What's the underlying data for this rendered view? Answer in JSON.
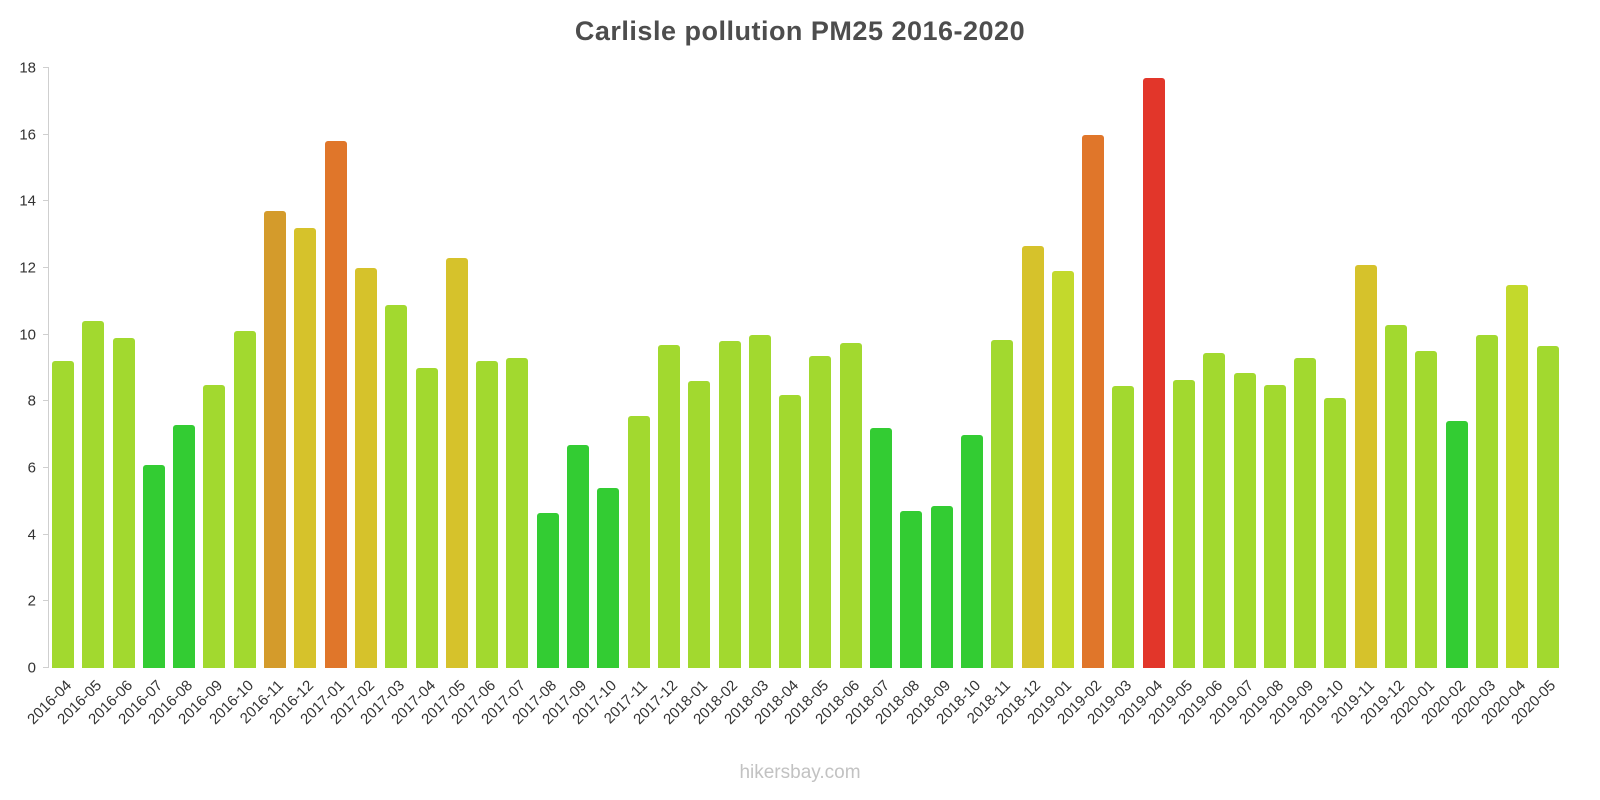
{
  "title": "Carlisle pollution PM25 2016-2020",
  "footer": "hikersbay.com",
  "chart_data": {
    "type": "bar",
    "title": "Carlisle pollution PM25 2016-2020",
    "xlabel": "",
    "ylabel": "",
    "ylim": [
      0,
      18
    ],
    "y_ticks": [
      0,
      2,
      4,
      6,
      8,
      10,
      12,
      14,
      16,
      18
    ],
    "grid": false,
    "legend": false,
    "watermark": "hikersbay.com",
    "categories": [
      "2016-04",
      "2016-05",
      "2016-06",
      "2016-07",
      "2016-08",
      "2016-09",
      "2016-10",
      "2016-11",
      "2016-12",
      "2017-01",
      "2017-02",
      "2017-03",
      "2017-04",
      "2017-05",
      "2017-06",
      "2017-07",
      "2017-08",
      "2017-09",
      "2017-10",
      "2017-11",
      "2017-12",
      "2018-01",
      "2018-02",
      "2018-03",
      "2018-04",
      "2018-05",
      "2018-06",
      "2018-07",
      "2018-08",
      "2018-09",
      "2018-10",
      "2018-11",
      "2018-12",
      "2019-01",
      "2019-02",
      "2019-03",
      "2019-04",
      "2019-05",
      "2019-06",
      "2019-07",
      "2019-08",
      "2019-09",
      "2019-10",
      "2019-11",
      "2019-12",
      "2020-01",
      "2020-02",
      "2020-03",
      "2020-04",
      "2020-05"
    ],
    "values": [
      9.2,
      10.4,
      9.9,
      6.1,
      7.3,
      8.5,
      10.1,
      13.7,
      13.2,
      15.8,
      12.0,
      10.9,
      9.0,
      12.3,
      9.2,
      9.3,
      4.65,
      6.7,
      5.4,
      7.55,
      9.7,
      8.6,
      9.8,
      10.0,
      8.2,
      9.35,
      9.75,
      7.2,
      4.7,
      4.85,
      7.0,
      9.85,
      12.65,
      11.9,
      16.0,
      8.45,
      17.7,
      8.65,
      9.45,
      8.85,
      8.5,
      9.3,
      8.1,
      12.1,
      10.3,
      9.5,
      7.4,
      10.0,
      11.5,
      9.65
    ],
    "bar_colors": [
      "#a2d92f",
      "#a2d92f",
      "#a2d92f",
      "#33cc33",
      "#33cc33",
      "#a2d92f",
      "#a2d92f",
      "#d49b2b",
      "#d6c22b",
      "#e0762a",
      "#d6c22b",
      "#a2d92f",
      "#a2d92f",
      "#d6c22b",
      "#a2d92f",
      "#a2d92f",
      "#33cc33",
      "#33cc33",
      "#33cc33",
      "#a2d92f",
      "#a2d92f",
      "#a2d92f",
      "#a2d92f",
      "#a2d92f",
      "#a2d92f",
      "#a2d92f",
      "#a2d92f",
      "#33cc33",
      "#33cc33",
      "#33cc33",
      "#33cc33",
      "#a2d92f",
      "#d6c22b",
      "#c3d92c",
      "#e0762a",
      "#a2d92f",
      "#e2362a",
      "#a2d92f",
      "#a2d92f",
      "#a2d92f",
      "#a2d92f",
      "#a2d92f",
      "#a2d92f",
      "#d6c22b",
      "#a2d92f",
      "#a2d92f",
      "#33cc33",
      "#a2d92f",
      "#c3d92c",
      "#a2d92f"
    ],
    "axis_color": "#cfcfcf",
    "label_color": "#333333",
    "title_color": "#4d4d4d"
  }
}
